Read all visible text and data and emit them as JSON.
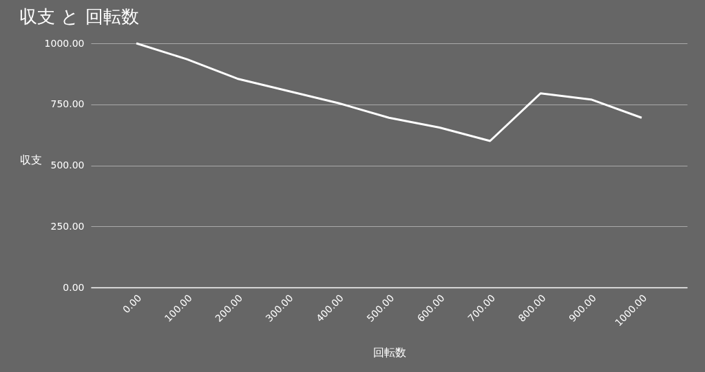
{
  "chart_data": {
    "type": "line",
    "title": "収支 と 回転数",
    "xlabel": "回転数",
    "ylabel": "収支",
    "categories": [
      "0.00",
      "100.00",
      "200.00",
      "300.00",
      "400.00",
      "500.00",
      "600.00",
      "700.00",
      "800.00",
      "900.00",
      "1000.00"
    ],
    "series": [
      {
        "color": "#ffffff",
        "values": [
          1000,
          935,
          855,
          805,
          755,
          695,
          655,
          600,
          795,
          770,
          695
        ]
      }
    ],
    "ylim": [
      0,
      1000
    ],
    "yticks": [
      {
        "value": 0,
        "label": "0.00"
      },
      {
        "value": 250,
        "label": "250.00"
      },
      {
        "value": 500,
        "label": "500.00"
      },
      {
        "value": 750,
        "label": "750.00"
      },
      {
        "value": 1000,
        "label": "1000.00"
      }
    ],
    "grid": "y",
    "marker": "none",
    "line_style": "solid"
  }
}
